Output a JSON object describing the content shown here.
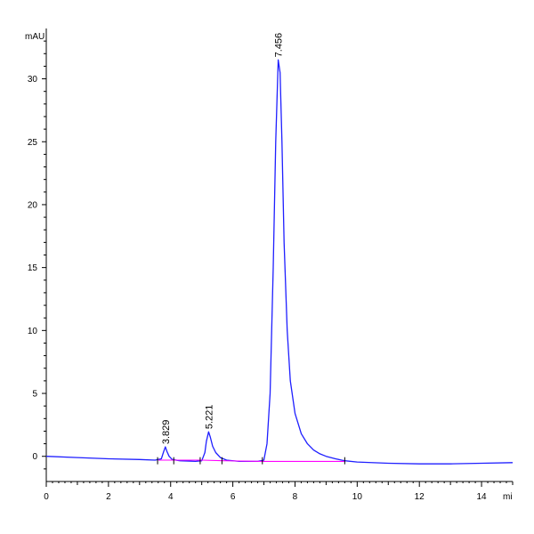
{
  "chart_data": {
    "type": "line",
    "ylabel": "mAU",
    "xlabel": "mi",
    "xlim": [
      0,
      15
    ],
    "ylim": [
      -2,
      34
    ],
    "x_ticks": [
      0,
      2,
      4,
      6,
      8,
      10,
      12,
      14
    ],
    "y_ticks": [
      0,
      5,
      10,
      15,
      20,
      25,
      30
    ],
    "grid": false,
    "series": [
      {
        "color": "#1f1fff",
        "x": [
          0,
          1,
          2,
          3,
          3.5,
          3.7,
          3.78,
          3.83,
          3.88,
          3.95,
          4.05,
          4.3,
          4.8,
          5.0,
          5.1,
          5.15,
          5.22,
          5.28,
          5.35,
          5.45,
          5.6,
          5.8,
          6.2,
          6.8,
          7.0,
          7.1,
          7.2,
          7.3,
          7.38,
          7.46,
          7.52,
          7.58,
          7.65,
          7.75,
          7.85,
          8.0,
          8.2,
          8.4,
          8.6,
          8.8,
          9.0,
          9.3,
          9.6,
          10,
          11,
          12,
          13,
          14,
          15
        ],
        "y": [
          0.0,
          -0.1,
          -0.2,
          -0.25,
          -0.3,
          -0.2,
          0.4,
          0.75,
          0.4,
          0.0,
          -0.25,
          -0.35,
          -0.4,
          -0.35,
          0.3,
          1.2,
          1.95,
          1.5,
          0.8,
          0.3,
          -0.1,
          -0.3,
          -0.4,
          -0.4,
          -0.3,
          1.0,
          5.0,
          15.0,
          25.0,
          31.5,
          30.5,
          25.0,
          17.0,
          10.0,
          6.0,
          3.4,
          1.8,
          1.0,
          0.5,
          0.2,
          0.0,
          -0.2,
          -0.35,
          -0.45,
          -0.55,
          -0.6,
          -0.6,
          -0.55,
          -0.5
        ]
      },
      {
        "color": "#ff00ff",
        "x": [
          3.6,
          4.1,
          5.0,
          5.7,
          7.0,
          8.5,
          9.6
        ],
        "y": [
          -0.3,
          -0.3,
          -0.3,
          -0.35,
          -0.4,
          -0.4,
          -0.4
        ]
      }
    ],
    "annotations": [
      {
        "x": 3.829,
        "y": 0.75,
        "text": "3.829"
      },
      {
        "x": 5.221,
        "y": 1.95,
        "text": "5.221"
      },
      {
        "x": 7.456,
        "y": 31.5,
        "text": "7.456"
      }
    ],
    "integration_markers": [
      3.58,
      4.1,
      4.95,
      5.65,
      6.95,
      9.6
    ]
  }
}
